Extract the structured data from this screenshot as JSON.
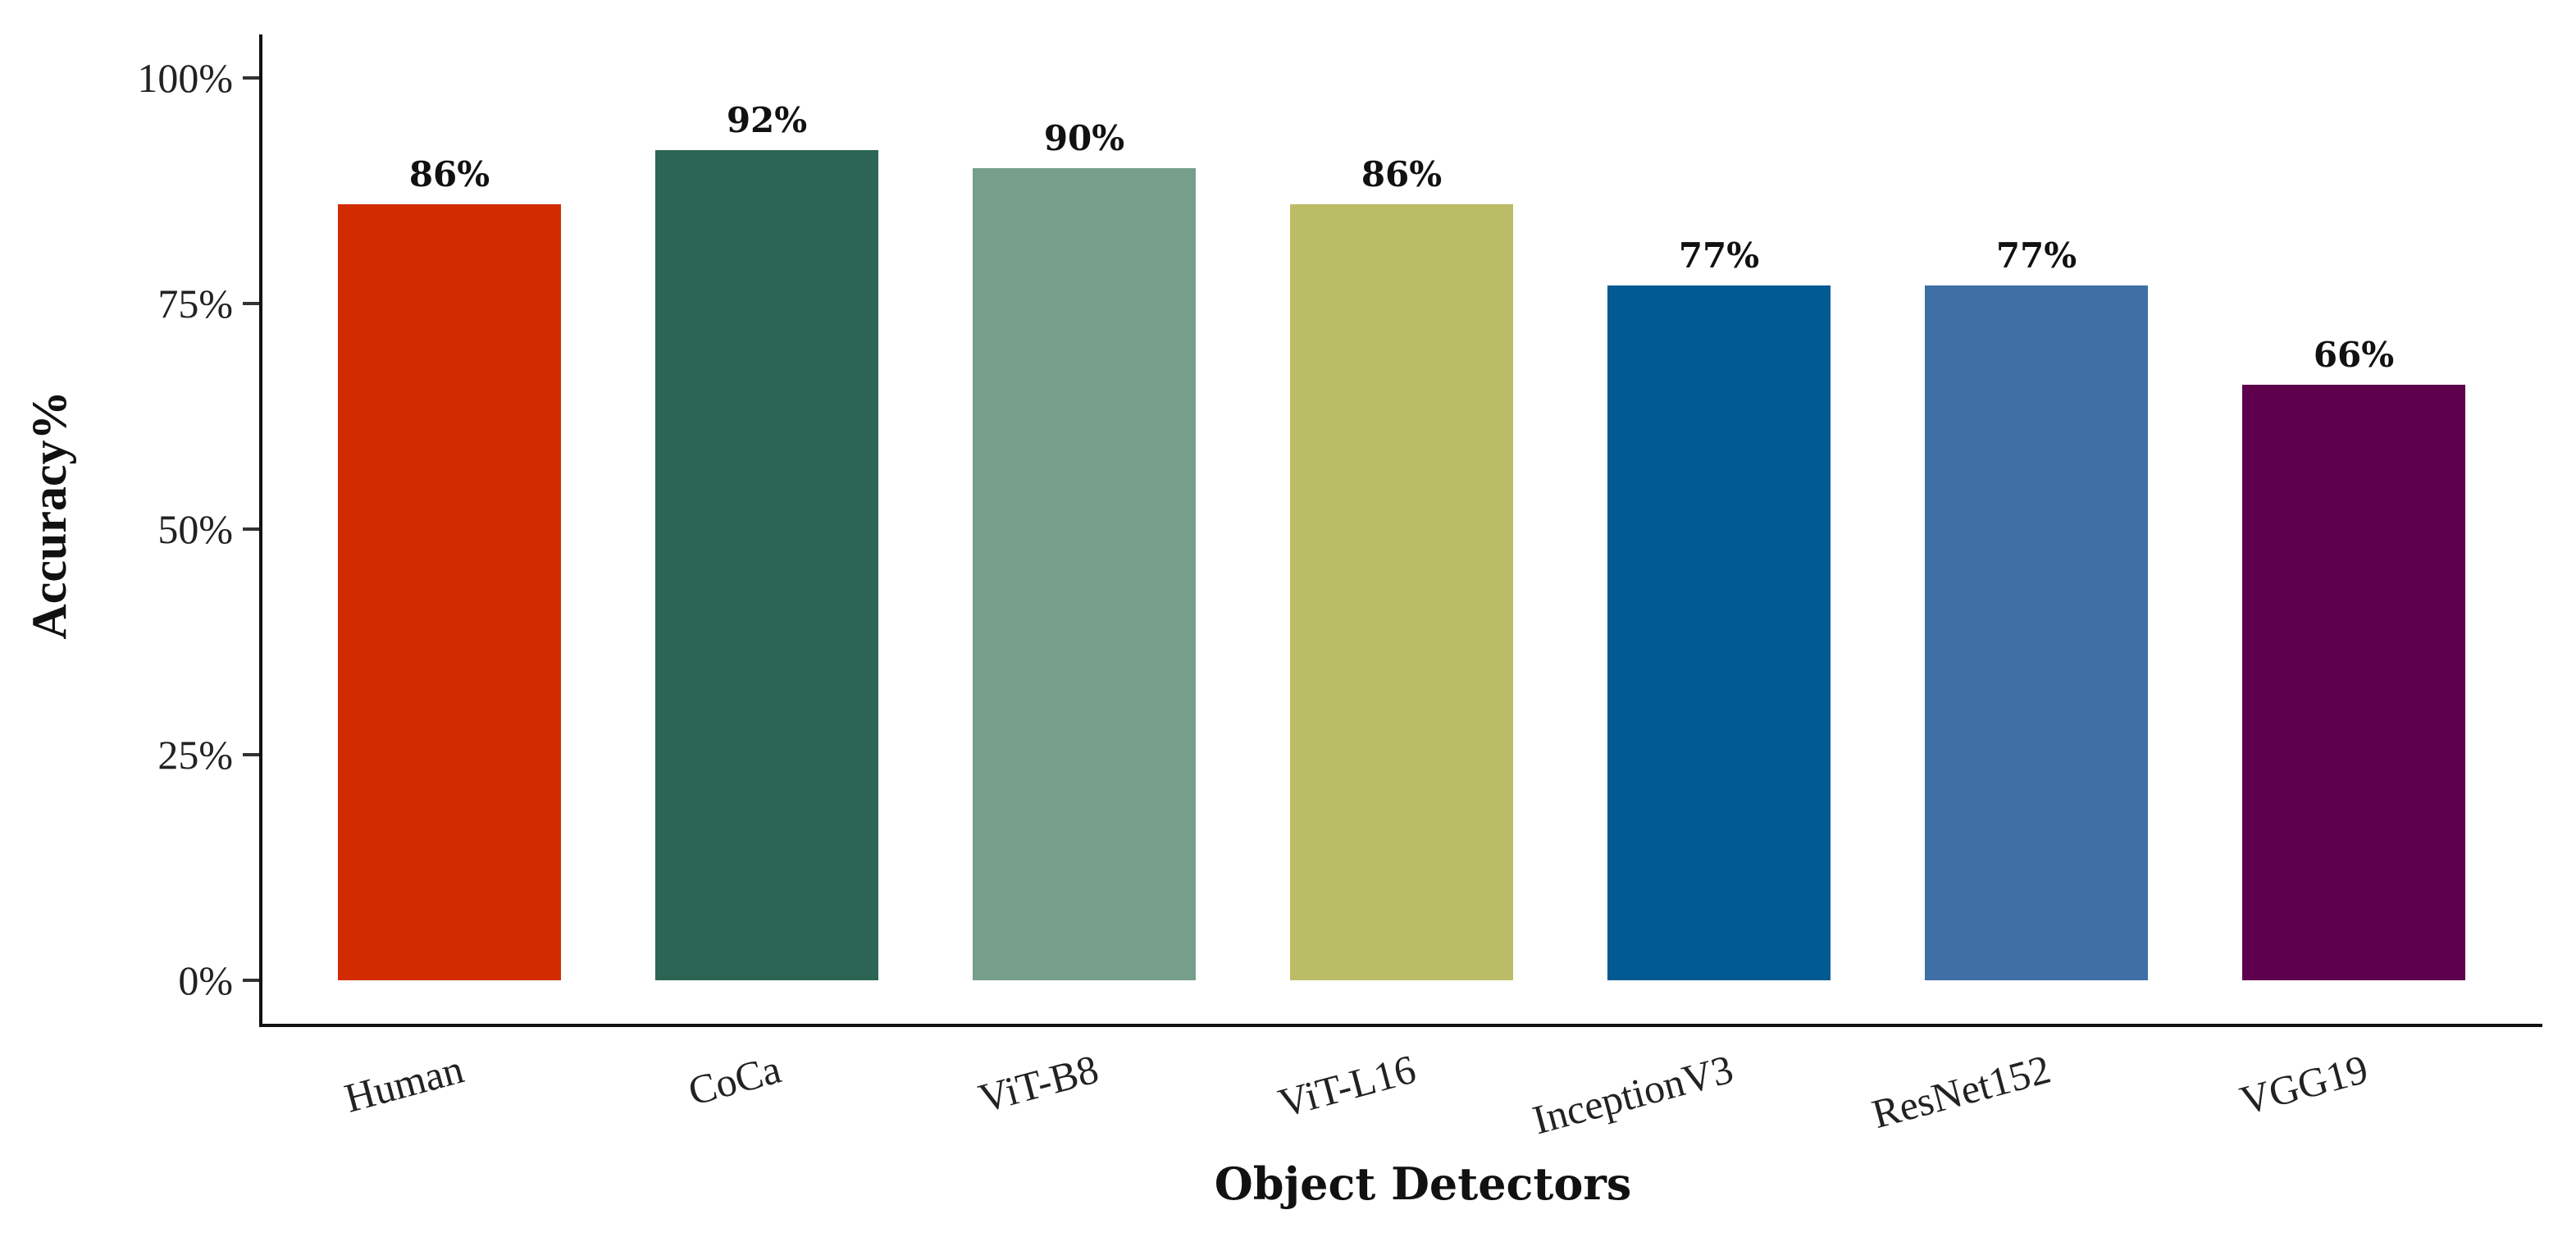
{
  "chart_data": {
    "type": "bar",
    "categories": [
      "Human",
      "CoCa",
      "ViT-B8",
      "ViT-L16",
      "InceptionV3",
      "ResNet152",
      "VGG19"
    ],
    "values": [
      86,
      92,
      90,
      86,
      77,
      77,
      66
    ],
    "value_labels": [
      "86%",
      "92%",
      "90%",
      "86%",
      "77%",
      "77%",
      "66%"
    ],
    "colors": [
      "#D22B00",
      "#2D6555",
      "#779E8B",
      "#BBBD66",
      "#015A91",
      "#3E6FA5",
      "#5E004C"
    ],
    "xlabel": "Object Detectors",
    "ylabel": "Accuracy%",
    "ylim": [
      0,
      100
    ],
    "yticks": [
      0,
      25,
      50,
      75,
      100
    ],
    "ytick_labels": [
      "0%",
      "25%",
      "50%",
      "75%",
      "100%"
    ],
    "grid": false,
    "legend": "none"
  }
}
